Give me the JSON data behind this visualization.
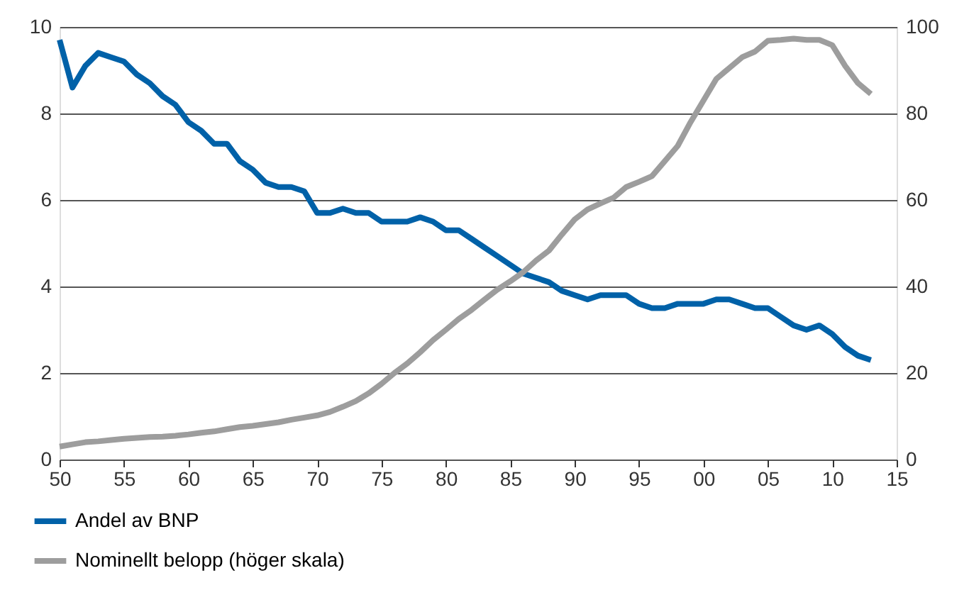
{
  "chart_data": {
    "type": "line",
    "x": [
      1950,
      1951,
      1952,
      1953,
      1954,
      1955,
      1956,
      1957,
      1958,
      1959,
      1960,
      1961,
      1962,
      1963,
      1964,
      1965,
      1966,
      1967,
      1968,
      1969,
      1970,
      1971,
      1972,
      1973,
      1974,
      1975,
      1976,
      1977,
      1978,
      1979,
      1980,
      1981,
      1982,
      1983,
      1984,
      1985,
      1986,
      1987,
      1988,
      1989,
      1990,
      1991,
      1992,
      1993,
      1994,
      1995,
      1996,
      1997,
      1998,
      1999,
      2000,
      2001,
      2002,
      2003,
      2004,
      2005,
      2006,
      2007,
      2008,
      2009,
      2010,
      2011,
      2012,
      2013
    ],
    "series": [
      {
        "name": "Andel av BNP",
        "color": "#0061a8",
        "values": [
          9.7,
          8.6,
          9.1,
          9.4,
          9.3,
          9.2,
          8.9,
          8.7,
          8.4,
          8.2,
          7.8,
          7.6,
          7.3,
          7.3,
          6.9,
          6.7,
          6.4,
          6.3,
          6.3,
          6.2,
          5.7,
          5.7,
          5.8,
          5.7,
          5.7,
          5.5,
          5.5,
          5.5,
          5.6,
          5.5,
          5.3,
          5.3,
          5.1,
          4.9,
          4.7,
          4.5,
          4.3,
          4.2,
          4.1,
          3.9,
          3.8,
          3.7,
          3.8,
          3.8,
          3.8,
          3.6,
          3.5,
          3.5,
          3.6,
          3.6,
          3.6,
          3.7,
          3.7,
          3.6,
          3.5,
          3.5,
          3.3,
          3.1,
          3.0,
          3.1,
          2.9,
          2.6,
          2.4,
          2.3
        ]
      },
      {
        "name": "Nominellt belopp (höger skala)",
        "color": "#9d9d9d",
        "axis": "y2",
        "values": [
          3,
          3.5,
          4,
          4.2,
          4.5,
          4.8,
          5,
          5.2,
          5.3,
          5.5,
          5.8,
          6.2,
          6.5,
          7,
          7.5,
          7.8,
          8.2,
          8.6,
          9.2,
          9.7,
          10.2,
          11,
          12.2,
          13.5,
          15.3,
          17.5,
          20,
          22.2,
          24.8,
          27.6,
          30,
          32.5,
          34.6,
          37,
          39.3,
          41.2,
          43.3,
          46,
          48.3,
          52,
          55.5,
          57.8,
          59.2,
          60.5,
          63,
          64.2,
          65.5,
          69,
          72.5,
          78,
          83,
          88,
          90.5,
          93,
          94.3,
          96.8,
          97,
          97.3,
          97,
          97,
          95.8,
          91,
          87,
          84.5
        ]
      }
    ],
    "xlim": [
      1950,
      2015
    ],
    "xticks": [
      {
        "value": 1950,
        "label": "50"
      },
      {
        "value": 1955,
        "label": "55"
      },
      {
        "value": 1960,
        "label": "60"
      },
      {
        "value": 1965,
        "label": "65"
      },
      {
        "value": 1970,
        "label": "70"
      },
      {
        "value": 1975,
        "label": "75"
      },
      {
        "value": 1980,
        "label": "80"
      },
      {
        "value": 1985,
        "label": "85"
      },
      {
        "value": 1990,
        "label": "90"
      },
      {
        "value": 1995,
        "label": "95"
      },
      {
        "value": 2000,
        "label": "00"
      },
      {
        "value": 2005,
        "label": "05"
      },
      {
        "value": 2010,
        "label": "10"
      },
      {
        "value": 2015,
        "label": "15"
      }
    ],
    "ylim": [
      0,
      10
    ],
    "yticks": [
      0,
      2,
      4,
      6,
      8,
      10
    ],
    "y2lim": [
      0,
      100
    ],
    "y2ticks": [
      0,
      20,
      40,
      60,
      80,
      100
    ],
    "grid": "y",
    "legend": "bottom left",
    "line_style": "solid",
    "marker": "none"
  }
}
